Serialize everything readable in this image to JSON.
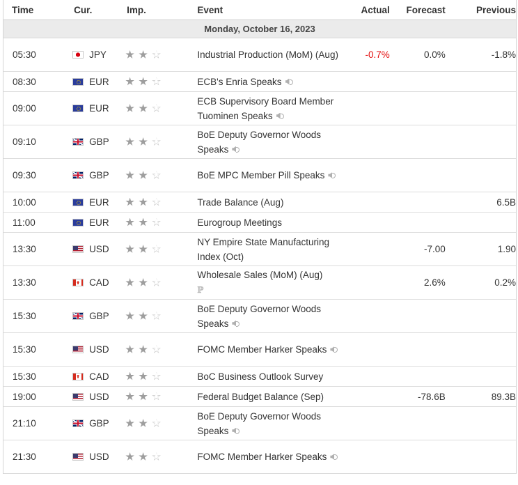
{
  "headers": {
    "time": "Time",
    "currency": "Cur.",
    "importance": "Imp.",
    "event": "Event",
    "actual": "Actual",
    "forecast": "Forecast",
    "previous": "Previous"
  },
  "date_label": "Monday, October 16, 2023",
  "colors": {
    "negative_actual": "#e30e0e",
    "star_filled": "#9e9e9e",
    "date_row_bg": "#ebebeb"
  },
  "events": [
    {
      "time": "05:30",
      "currency": "JPY",
      "flag": "jpy-flag-icon",
      "importance": 2,
      "event": "Industrial Production (MoM) (Aug)",
      "icon": "",
      "actual": "-0.7%",
      "forecast": "0.0%",
      "previous": "-1.8%",
      "lines": 2
    },
    {
      "time": "08:30",
      "currency": "EUR",
      "flag": "eur-flag-icon",
      "importance": 2,
      "event": "ECB's Enria Speaks",
      "icon": "speaker-icon",
      "actual": "",
      "forecast": "",
      "previous": "",
      "lines": 1
    },
    {
      "time": "09:00",
      "currency": "EUR",
      "flag": "eur-flag-icon",
      "importance": 2,
      "event": "ECB Supervisory Board Member Tuominen Speaks",
      "icon": "speaker-icon",
      "actual": "",
      "forecast": "",
      "previous": "",
      "lines": 2
    },
    {
      "time": "09:10",
      "currency": "GBP",
      "flag": "gbp-flag-icon",
      "importance": 2,
      "event": "BoE Deputy Governor Woods Speaks",
      "icon": "speaker-icon",
      "actual": "",
      "forecast": "",
      "previous": "",
      "lines": 2
    },
    {
      "time": "09:30",
      "currency": "GBP",
      "flag": "gbp-flag-icon",
      "importance": 2,
      "event": "BoE MPC Member Pill Speaks",
      "icon": "speaker-icon",
      "actual": "",
      "forecast": "",
      "previous": "",
      "lines": 2
    },
    {
      "time": "10:00",
      "currency": "EUR",
      "flag": "eur-flag-icon",
      "importance": 2,
      "event": "Trade Balance (Aug)",
      "icon": "",
      "actual": "",
      "forecast": "",
      "previous": "6.5B",
      "lines": 1
    },
    {
      "time": "11:00",
      "currency": "EUR",
      "flag": "eur-flag-icon",
      "importance": 2,
      "event": "Eurogroup Meetings",
      "icon": "",
      "actual": "",
      "forecast": "",
      "previous": "",
      "lines": 1
    },
    {
      "time": "13:30",
      "currency": "USD",
      "flag": "usd-flag-icon",
      "importance": 2,
      "event": "NY Empire State Manufacturing Index (Oct)",
      "icon": "",
      "actual": "",
      "forecast": "-7.00",
      "previous": "1.90",
      "lines": 2
    },
    {
      "time": "13:30",
      "currency": "CAD",
      "flag": "cad-flag-icon",
      "importance": 2,
      "event": "Wholesale Sales (MoM) (Aug)",
      "icon": "preliminary-icon",
      "actual": "",
      "forecast": "2.6%",
      "previous": "0.2%",
      "lines": 2
    },
    {
      "time": "15:30",
      "currency": "GBP",
      "flag": "gbp-flag-icon",
      "importance": 2,
      "event": "BoE Deputy Governor Woods Speaks",
      "icon": "speaker-icon",
      "actual": "",
      "forecast": "",
      "previous": "",
      "lines": 2
    },
    {
      "time": "15:30",
      "currency": "USD",
      "flag": "usd-flag-icon",
      "importance": 2,
      "event": "FOMC Member Harker Speaks",
      "icon": "speaker-icon",
      "actual": "",
      "forecast": "",
      "previous": "",
      "lines": 2
    },
    {
      "time": "15:30",
      "currency": "CAD",
      "flag": "cad-flag-icon",
      "importance": 2,
      "event": "BoC Business Outlook Survey",
      "icon": "",
      "actual": "",
      "forecast": "",
      "previous": "",
      "lines": 1
    },
    {
      "time": "19:00",
      "currency": "USD",
      "flag": "usd-flag-icon",
      "importance": 2,
      "event": "Federal Budget Balance (Sep)",
      "icon": "",
      "actual": "",
      "forecast": "-78.6B",
      "previous": "89.3B",
      "lines": 1
    },
    {
      "time": "21:10",
      "currency": "GBP",
      "flag": "gbp-flag-icon",
      "importance": 2,
      "event": "BoE Deputy Governor Woods Speaks",
      "icon": "speaker-icon",
      "actual": "",
      "forecast": "",
      "previous": "",
      "lines": 2
    },
    {
      "time": "21:30",
      "currency": "USD",
      "flag": "usd-flag-icon",
      "importance": 2,
      "event": "FOMC Member Harker Speaks",
      "icon": "speaker-icon",
      "actual": "",
      "forecast": "",
      "previous": "",
      "lines": 2
    }
  ]
}
